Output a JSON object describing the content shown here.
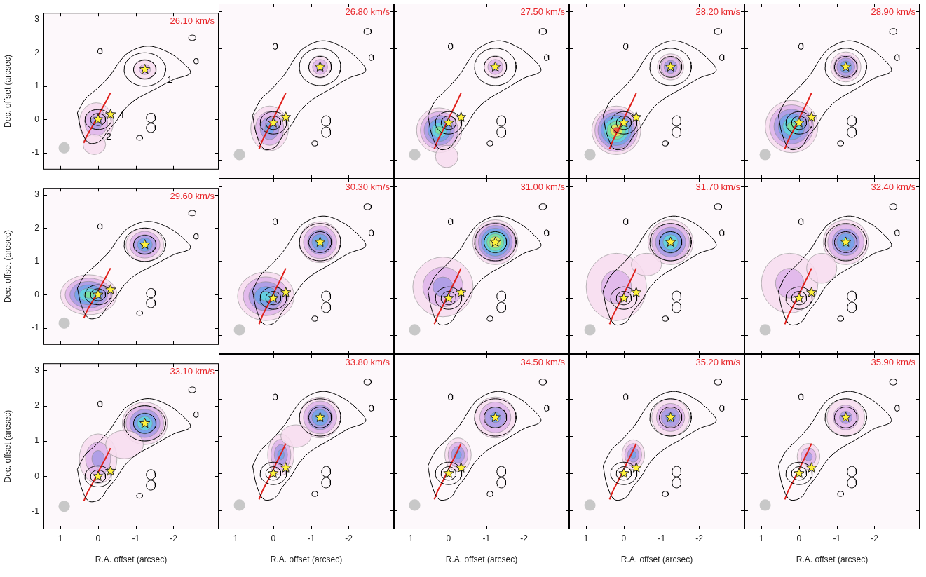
{
  "chart_data": {
    "type": "scatter",
    "x_label": "R.A. offset (arcsec)",
    "y_label": "Dec. offset (arcsec)",
    "xlim": [
      1.45,
      -3.2
    ],
    "ylim": [
      -1.5,
      3.2
    ],
    "xticks": [
      1,
      0,
      -1,
      -2
    ],
    "yticks": [
      -1,
      0,
      1,
      2,
      3
    ],
    "grid": false,
    "continuum_contours": [
      {
        "points": [
          [
            0.55,
            0.2
          ],
          [
            0.45,
            -0.3
          ],
          [
            0.25,
            -0.7
          ],
          [
            -0.05,
            -0.65
          ],
          [
            -0.25,
            -0.35
          ],
          [
            -0.45,
            -0.1
          ],
          [
            -0.7,
            0.3
          ],
          [
            -1.0,
            0.6
          ],
          [
            -1.5,
            0.9
          ],
          [
            -2.0,
            1.2
          ],
          [
            -2.45,
            1.4
          ],
          [
            -2.2,
            1.75
          ],
          [
            -1.8,
            2.05
          ],
          [
            -1.3,
            2.2
          ],
          [
            -0.8,
            2.0
          ],
          [
            -0.55,
            1.7
          ],
          [
            -0.3,
            1.3
          ],
          [
            0.05,
            0.9
          ],
          [
            0.35,
            0.6
          ],
          [
            0.55,
            0.2
          ]
        ]
      }
    ],
    "continuum_ellipses": [
      [
        -1.24,
        1.5,
        0.55,
        0.5
      ],
      [
        -1.24,
        1.5,
        0.3,
        0.28
      ],
      [
        0.0,
        0.0,
        0.35,
        0.3
      ],
      [
        0.0,
        0.0,
        0.2,
        0.18
      ],
      [
        -1.4,
        0.05,
        0.12,
        0.14
      ],
      [
        -1.4,
        -0.25,
        0.12,
        0.14
      ],
      [
        -0.05,
        2.05,
        0.06,
        0.08
      ],
      [
        -2.5,
        2.45,
        0.1,
        0.08
      ],
      [
        -2.6,
        1.75,
        0.06,
        0.08
      ],
      [
        -1.1,
        -0.55,
        0.08,
        0.07
      ]
    ],
    "outflow_axis": {
      "color": "#e0201b",
      "points": [
        [
          0.38,
          -0.7
        ],
        [
          0.28,
          -0.45
        ],
        [
          0.15,
          -0.2
        ],
        [
          0.03,
          0.05
        ],
        [
          -0.08,
          0.28
        ],
        [
          -0.2,
          0.52
        ],
        [
          -0.33,
          0.8
        ]
      ]
    },
    "sources": [
      {
        "x": -1.24,
        "y": 1.5
      },
      {
        "x": 0.0,
        "y": 0.0
      },
      {
        "x": -0.33,
        "y": 0.15
      }
    ],
    "beam": {
      "x": 0.9,
      "y": -0.85,
      "diameter": 0.3
    },
    "panels": [
      {
        "velocity_label": "26.10 km/s",
        "source_labels": [
          {
            "text": "1",
            "x": -1.9,
            "y": 1.17
          },
          {
            "text": "4",
            "x": -0.62,
            "y": 0.12
          },
          {
            "text": "2",
            "x": -0.28,
            "y": -0.52
          }
        ],
        "emission": [
          {
            "x": -1.24,
            "y": 1.5,
            "rx": 0.3,
            "ry": 0.3,
            "levels": 2
          },
          {
            "x": 0.05,
            "y": -0.1,
            "rx": 0.45,
            "ry": 0.6,
            "levels": 3
          },
          {
            "x": 0.1,
            "y": -0.75,
            "rx": 0.3,
            "ry": 0.3,
            "levels": 1
          }
        ]
      },
      {
        "velocity_label": "26.80 km/s",
        "emission": [
          {
            "x": -1.24,
            "y": 1.5,
            "rx": 0.3,
            "ry": 0.3,
            "levels": 3
          },
          {
            "x": 0.1,
            "y": -0.15,
            "rx": 0.5,
            "ry": 0.6,
            "levels": 4
          }
        ]
      },
      {
        "velocity_label": "27.50 km/s",
        "emission": [
          {
            "x": -1.24,
            "y": 1.5,
            "rx": 0.3,
            "ry": 0.3,
            "levels": 3
          },
          {
            "x": 0.25,
            "y": -0.2,
            "rx": 0.6,
            "ry": 0.6,
            "levels": 6
          },
          {
            "x": 0.05,
            "y": -0.9,
            "rx": 0.3,
            "ry": 0.3,
            "levels": 1
          }
        ]
      },
      {
        "velocity_label": "28.20 km/s",
        "emission": [
          {
            "x": -1.24,
            "y": 1.5,
            "rx": 0.35,
            "ry": 0.35,
            "levels": 4
          },
          {
            "x": 0.2,
            "y": -0.2,
            "rx": 0.65,
            "ry": 0.65,
            "levels": 8
          }
        ]
      },
      {
        "velocity_label": "28.90 km/s",
        "emission": [
          {
            "x": -1.24,
            "y": 1.5,
            "rx": 0.4,
            "ry": 0.4,
            "levels": 5
          },
          {
            "x": 0.2,
            "y": -0.1,
            "rx": 0.7,
            "ry": 0.7,
            "levels": 6
          }
        ]
      },
      {
        "velocity_label": "29.60 km/s",
        "emission": [
          {
            "x": -1.24,
            "y": 1.5,
            "rx": 0.5,
            "ry": 0.5,
            "levels": 5
          },
          {
            "x": 0.25,
            "y": 0.0,
            "rx": 0.75,
            "ry": 0.6,
            "levels": 6
          }
        ]
      },
      {
        "velocity_label": "30.30 km/s",
        "emission": [
          {
            "x": -1.24,
            "y": 1.5,
            "rx": 0.55,
            "ry": 0.55,
            "levels": 5
          },
          {
            "x": 0.2,
            "y": 0.05,
            "rx": 0.75,
            "ry": 0.65,
            "levels": 5
          }
        ]
      },
      {
        "velocity_label": "31.00 km/s",
        "emission": [
          {
            "x": -1.24,
            "y": 1.5,
            "rx": 0.6,
            "ry": 0.6,
            "levels": 8
          },
          {
            "x": 0.15,
            "y": 0.3,
            "rx": 0.8,
            "ry": 0.8,
            "levels": 3
          }
        ]
      },
      {
        "velocity_label": "31.70 km/s",
        "emission": [
          {
            "x": -1.24,
            "y": 1.5,
            "rx": 0.6,
            "ry": 0.6,
            "levels": 6
          },
          {
            "x": 0.2,
            "y": 0.3,
            "rx": 0.8,
            "ry": 0.9,
            "levels": 2
          },
          {
            "x": -0.6,
            "y": 0.9,
            "rx": 0.4,
            "ry": 0.3,
            "levels": 1
          }
        ]
      },
      {
        "velocity_label": "32.40 km/s",
        "emission": [
          {
            "x": -1.24,
            "y": 1.5,
            "rx": 0.6,
            "ry": 0.6,
            "levels": 5
          },
          {
            "x": 0.25,
            "y": 0.4,
            "rx": 0.75,
            "ry": 0.8,
            "levels": 2
          },
          {
            "x": -0.6,
            "y": 0.8,
            "rx": 0.4,
            "ry": 0.4,
            "levels": 1
          }
        ]
      },
      {
        "velocity_label": "33.10 km/s",
        "emission": [
          {
            "x": -1.24,
            "y": 1.5,
            "rx": 0.6,
            "ry": 0.6,
            "levels": 6
          },
          {
            "x": 0.0,
            "y": 0.5,
            "rx": 0.5,
            "ry": 0.7,
            "levels": 3
          },
          {
            "x": -0.7,
            "y": 0.9,
            "rx": 0.5,
            "ry": 0.4,
            "levels": 1
          }
        ]
      },
      {
        "velocity_label": "33.80 km/s",
        "emission": [
          {
            "x": -1.24,
            "y": 1.5,
            "rx": 0.55,
            "ry": 0.55,
            "levels": 5
          },
          {
            "x": -0.2,
            "y": 0.5,
            "rx": 0.35,
            "ry": 0.55,
            "levels": 4
          },
          {
            "x": -0.6,
            "y": 1.0,
            "rx": 0.4,
            "ry": 0.3,
            "levels": 1
          }
        ]
      },
      {
        "velocity_label": "34.50 km/s",
        "emission": [
          {
            "x": -1.24,
            "y": 1.5,
            "rx": 0.55,
            "ry": 0.55,
            "levels": 4
          },
          {
            "x": -0.25,
            "y": 0.5,
            "rx": 0.35,
            "ry": 0.45,
            "levels": 4
          }
        ]
      },
      {
        "velocity_label": "35.20 km/s",
        "emission": [
          {
            "x": -1.24,
            "y": 1.5,
            "rx": 0.5,
            "ry": 0.5,
            "levels": 4
          },
          {
            "x": -0.25,
            "y": 0.5,
            "rx": 0.3,
            "ry": 0.4,
            "levels": 4
          }
        ]
      },
      {
        "velocity_label": "35.90 km/s",
        "emission": [
          {
            "x": -1.24,
            "y": 1.5,
            "rx": 0.5,
            "ry": 0.5,
            "levels": 3
          },
          {
            "x": -0.25,
            "y": 0.45,
            "rx": 0.3,
            "ry": 0.35,
            "levels": 3
          }
        ]
      }
    ]
  }
}
